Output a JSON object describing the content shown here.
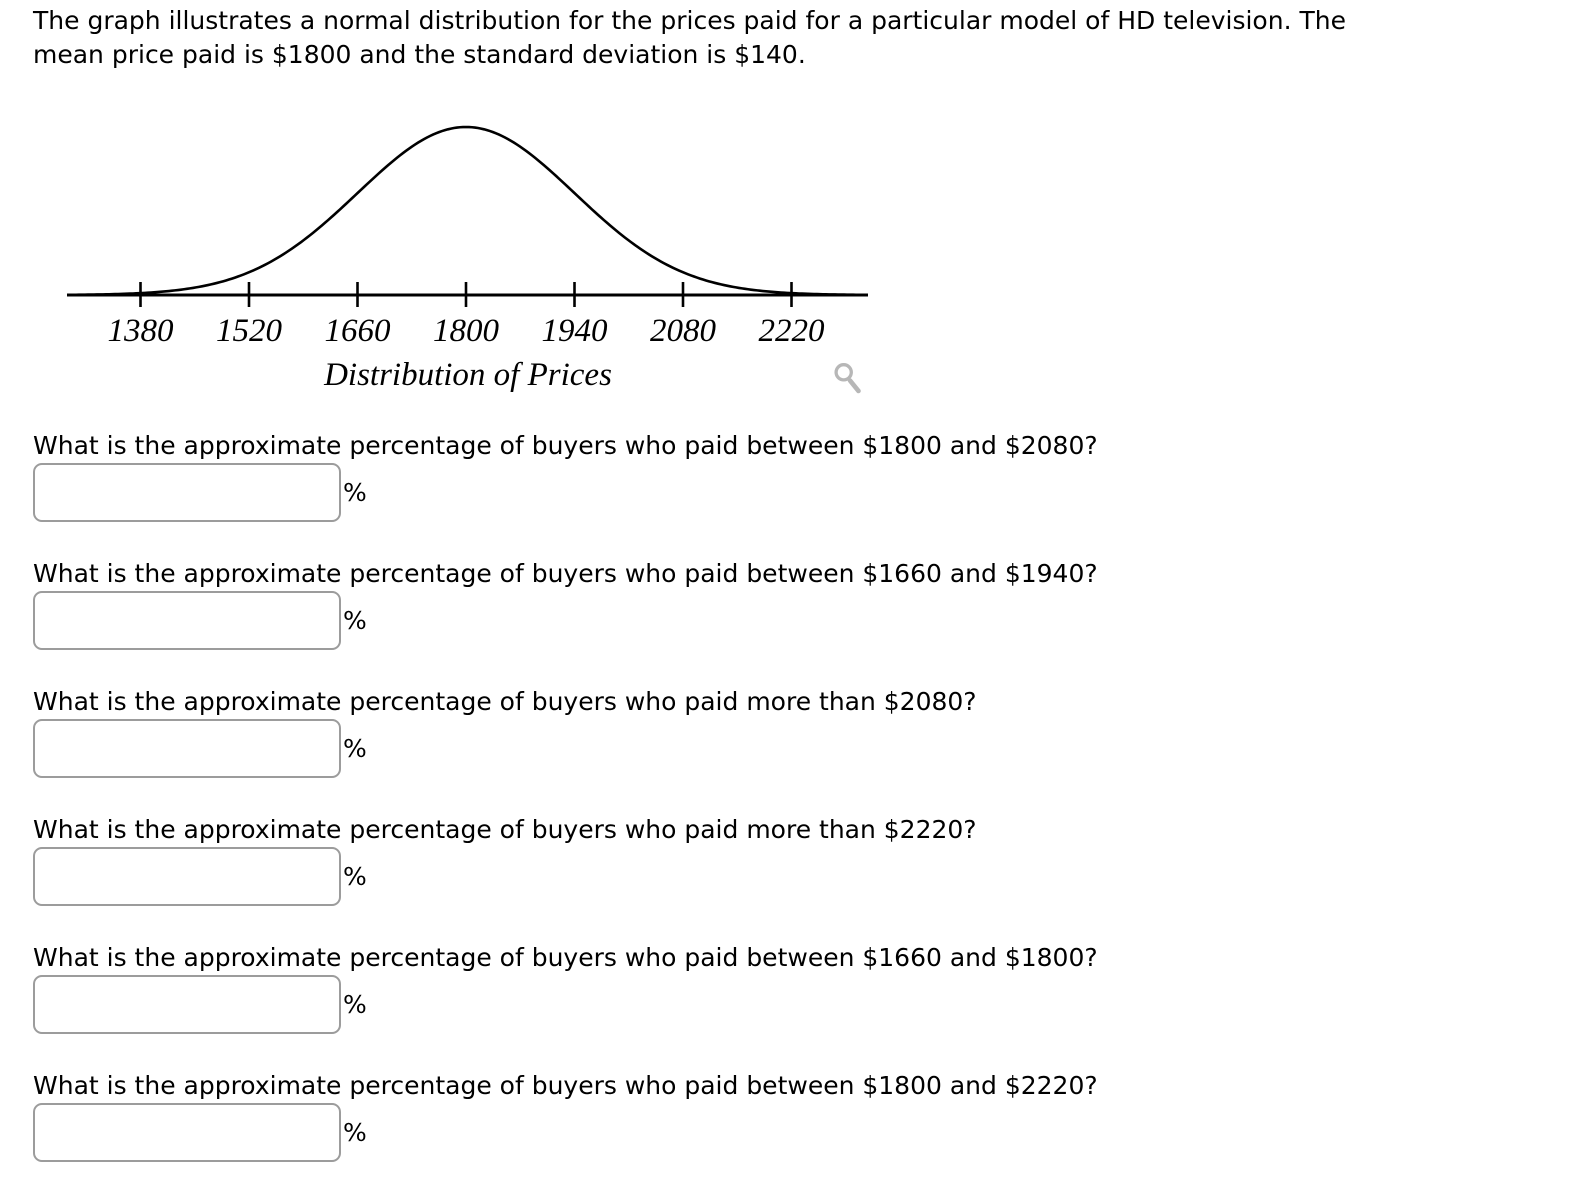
{
  "intro": {
    "line1": "The graph illustrates a normal distribution for the prices paid for a particular model of HD television. The",
    "line2": "mean price paid is $1800 and the standard deviation is $140."
  },
  "chart_data": {
    "type": "line",
    "subtype": "normal-distribution-curve",
    "title": "Distribution of Prices",
    "mean": 1800,
    "standard_deviation": 140,
    "x_ticks": [
      1380,
      1520,
      1660,
      1800,
      1940,
      2080,
      2220
    ],
    "x_range": [
      1286,
      2318
    ],
    "y_axis_shown": false,
    "grid": false,
    "legend": false,
    "curve_color": "#000000"
  },
  "icons": {
    "zoom_icon": "magnifying-glass",
    "zoom_icon_color": "#b7b7b7"
  },
  "answer_suffix": "%",
  "questions": [
    {
      "text": "What is the approximate percentage of buyers who paid between $1800 and $2080?",
      "value": ""
    },
    {
      "text": "What is the approximate percentage of buyers who paid between $1660 and $1940?",
      "value": ""
    },
    {
      "text": "What is the approximate percentage of buyers who paid more than $2080?",
      "value": ""
    },
    {
      "text": "What is the approximate percentage of buyers who paid more than $2220?",
      "value": ""
    },
    {
      "text": "What is the approximate percentage of buyers who paid between $1660 and $1800?",
      "value": ""
    },
    {
      "text": "What is the approximate percentage of buyers who paid between $1800 and $2220?",
      "value": ""
    }
  ]
}
